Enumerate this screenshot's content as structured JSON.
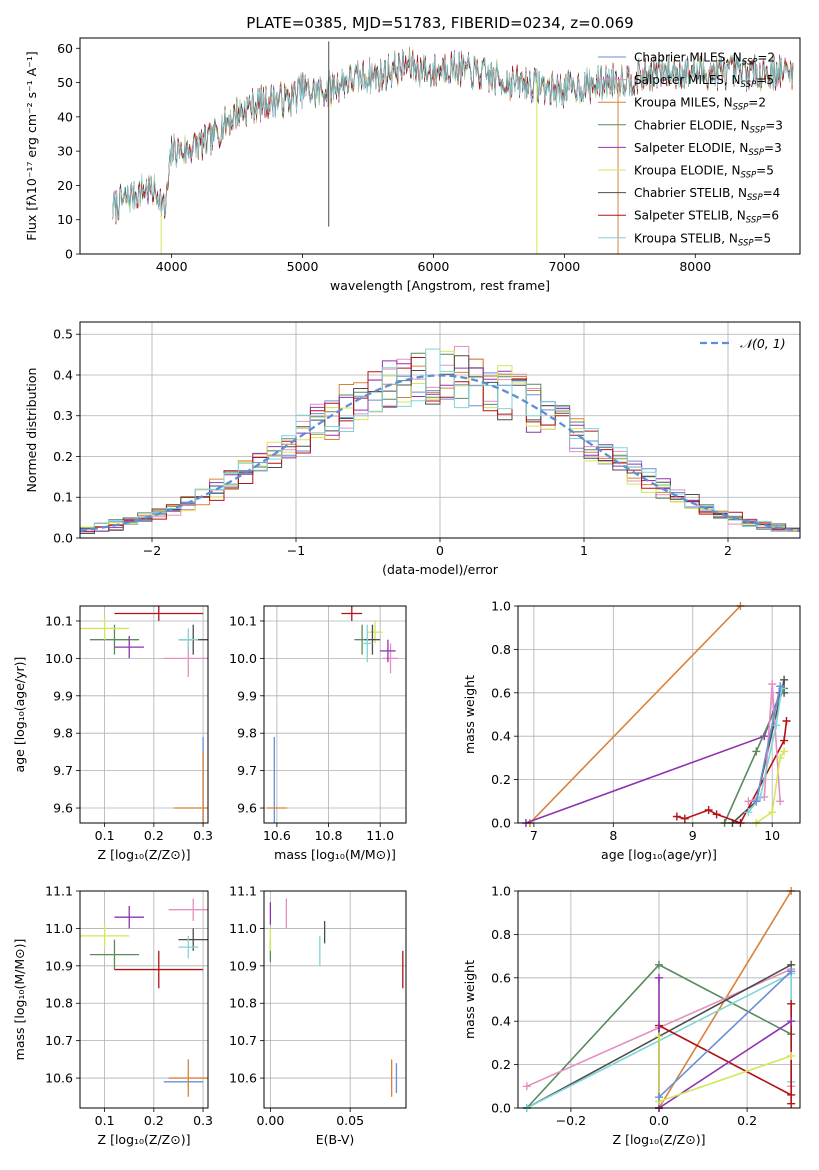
{
  "title": "PLATE=0385, MJD=51783, FIBERID=0234, z=0.069",
  "colors": {
    "chabrier_miles": "#6a8fd6",
    "salpeter_miles": "#e58fc0",
    "kroupa_miles": "#d9823a",
    "chabrier_elodie": "#5a8a5e",
    "salpeter_elodie": "#8e34b0",
    "kroupa_elodie": "#d4e65a",
    "chabrier_stelib": "#4d4d4d",
    "salpeter_stelib": "#b31217",
    "kroupa_stelib": "#7fd6d9",
    "normal_curve": "#5b8fd8",
    "grid": "#b0b0b0"
  },
  "chart_data": [
    {
      "id": "spectrum",
      "type": "line",
      "xlabel": "wavelength [Angstrom, rest frame]",
      "ylabel": "Flux [fλ10⁻¹⁷ erg cm⁻² s⁻¹ A⁻¹]",
      "xlim": [
        3300,
        8800
      ],
      "ylim": [
        0,
        63
      ],
      "xticks": [
        "4000",
        "5000",
        "6000",
        "7000",
        "8000"
      ],
      "yticks": [
        "0",
        "10",
        "20",
        "30",
        "40",
        "50",
        "60"
      ],
      "legend_position": "top-right",
      "grid": false,
      "continuum": {
        "x": [
          3550,
          3600,
          3700,
          3800,
          3900,
          3950,
          4000,
          4100,
          4200,
          4300,
          4400,
          4500,
          4600,
          4700,
          4800,
          4900,
          5000,
          5100,
          5200,
          5300,
          5400,
          5500,
          5600,
          5700,
          5800,
          5900,
          6000,
          6100,
          6200,
          6300,
          6400,
          6500,
          6600,
          6700,
          6800,
          6900,
          7000,
          7100,
          7200,
          7300,
          7400,
          7500,
          7600,
          7700,
          7800,
          7900,
          8000,
          8100,
          8200,
          8300,
          8400,
          8500,
          8600,
          8700
        ],
        "y": [
          13,
          15,
          17,
          19,
          18,
          12,
          30,
          30,
          32,
          33,
          38,
          41,
          43,
          44,
          45,
          45,
          48,
          47,
          48,
          50,
          51,
          52,
          52,
          54,
          55,
          54,
          53,
          55,
          54,
          53,
          52,
          51,
          50,
          50,
          49,
          48,
          48,
          49,
          49,
          50,
          51,
          51,
          52,
          53,
          53,
          53,
          53,
          53,
          53,
          53,
          53,
          53,
          53,
          53
        ]
      },
      "series": [
        {
          "name": "Chabrier MILES, N_SSP=2",
          "legend": "Chabrier MILES, N",
          "sub": "SSP",
          "suffix": "=2",
          "color_key": "chabrier_miles"
        },
        {
          "name": "Salpeter MILES, N_SSP=5",
          "legend": "Salpeter MILES, N",
          "sub": "SSP",
          "suffix": "=5",
          "color_key": "salpeter_miles"
        },
        {
          "name": "Kroupa MILES, N_SSP=2",
          "legend": "Kroupa MILES, N",
          "sub": "SSP",
          "suffix": "=2",
          "color_key": "kroupa_miles"
        },
        {
          "name": "Chabrier ELODIE, N_SSP=3",
          "legend": "Chabrier ELODIE, N",
          "sub": "SSP",
          "suffix": "=3",
          "color_key": "chabrier_elodie"
        },
        {
          "name": "Salpeter ELODIE, N_SSP=3",
          "legend": "Salpeter ELODIE, N",
          "sub": "SSP",
          "suffix": "=3",
          "color_key": "salpeter_elodie"
        },
        {
          "name": "Kroupa ELODIE, N_SSP=5",
          "legend": "Kroupa ELODIE, N",
          "sub": "SSP",
          "suffix": "=5",
          "color_key": "kroupa_elodie"
        },
        {
          "name": "Chabrier STELIB, N_SSP=4",
          "legend": "Chabrier STELIB, N",
          "sub": "SSP",
          "suffix": "=4",
          "color_key": "chabrier_stelib"
        },
        {
          "name": "Salpeter STELIB, N_SSP=6",
          "legend": "Salpeter STELIB, N",
          "sub": "SSP",
          "suffix": "=6",
          "color_key": "salpeter_stelib"
        },
        {
          "name": "Kroupa STELIB, N_SSP=5",
          "legend": "Kroupa STELIB, N",
          "sub": "SSP",
          "suffix": "=5",
          "color_key": "kroupa_stelib"
        }
      ],
      "features": [
        {
          "color_key": "chabrier_stelib",
          "x": 5200,
          "y": [
            8,
            62
          ]
        },
        {
          "color_key": "kroupa_elodie",
          "x": 3920,
          "y": [
            0,
            12
          ]
        },
        {
          "color_key": "kroupa_elodie",
          "x": 6790,
          "y": [
            0,
            50
          ]
        },
        {
          "color_key": "kroupa_miles",
          "x": 7410,
          "y": [
            0,
            50
          ]
        }
      ]
    },
    {
      "id": "residuals",
      "type": "bar",
      "xlabel": "(data-model)/error",
      "ylabel": "Normed distribution",
      "xlim": [
        -2.5,
        2.5
      ],
      "ylim": [
        0,
        0.53
      ],
      "xticks": [
        "−2",
        "−1",
        "0",
        "1",
        "2"
      ],
      "yticks": [
        "0.0",
        "0.1",
        "0.2",
        "0.3",
        "0.4",
        "0.5"
      ],
      "grid": true,
      "legend": "𝒩(0, 1)",
      "legend_position": "top-right",
      "bin_width": 0.1
    },
    {
      "id": "age_vs_Z",
      "type": "scatter",
      "xlabel": "Z [log₁₀(Z/Z⊙)]",
      "ylabel": "age  [log₁₀(age/yr)]",
      "xlim": [
        0.05,
        0.31
      ],
      "ylim": [
        9.56,
        10.14
      ],
      "xticks": [
        "0.1",
        "0.2",
        "0.3"
      ],
      "yticks": [
        "9.6",
        "9.7",
        "9.8",
        "9.9",
        "10.0",
        "10.1"
      ],
      "grid": true,
      "points": [
        {
          "color_key": "chabrier_miles",
          "x": 0.3,
          "xerr": 0.0,
          "y": 9.6,
          "yerr": 0.19
        },
        {
          "color_key": "salpeter_miles",
          "x": 0.27,
          "xerr": 0.05,
          "y": 10.0,
          "yerr": 0.05
        },
        {
          "color_key": "kroupa_miles",
          "x": 0.3,
          "xerr": 0.06,
          "y": 9.6,
          "yerr": 0.15
        },
        {
          "color_key": "chabrier_elodie",
          "x": 0.12,
          "xerr": 0.05,
          "y": 10.05,
          "yerr": 0.04
        },
        {
          "color_key": "salpeter_elodie",
          "x": 0.15,
          "xerr": 0.03,
          "y": 10.03,
          "yerr": 0.03
        },
        {
          "color_key": "kroupa_elodie",
          "x": 0.1,
          "xerr": 0.05,
          "y": 10.08,
          "yerr": 0.03
        },
        {
          "color_key": "chabrier_stelib",
          "x": 0.28,
          "xerr": 0.03,
          "y": 10.05,
          "yerr": 0.04
        },
        {
          "color_key": "salpeter_stelib",
          "x": 0.21,
          "xerr": 0.09,
          "y": 10.12,
          "yerr": 0.02
        },
        {
          "color_key": "kroupa_stelib",
          "x": 0.27,
          "xerr": 0.02,
          "y": 10.05,
          "yerr": 0.03
        }
      ]
    },
    {
      "id": "age_vs_mass",
      "type": "scatter",
      "xlabel": "mass [log₁₀(M/M⊙)]",
      "xlim": [
        10.55,
        11.1
      ],
      "ylim": [
        9.56,
        10.14
      ],
      "xticks": [
        "10.6",
        "10.8",
        "11.0"
      ],
      "yticks": [
        "9.6",
        "9.7",
        "9.8",
        "9.9",
        "10.0",
        "10.1"
      ],
      "grid": true,
      "points": [
        {
          "color_key": "chabrier_miles",
          "x": 10.59,
          "xerr": 0.0,
          "y": 9.6,
          "yerr": 0.19
        },
        {
          "color_key": "salpeter_miles",
          "x": 11.04,
          "xerr": 0.03,
          "y": 10.0,
          "yerr": 0.04
        },
        {
          "color_key": "kroupa_miles",
          "x": 10.6,
          "xerr": 0.04,
          "y": 9.6,
          "yerr": 0.0
        },
        {
          "color_key": "chabrier_elodie",
          "x": 10.93,
          "xerr": 0.03,
          "y": 10.05,
          "yerr": 0.04
        },
        {
          "color_key": "salpeter_elodie",
          "x": 11.03,
          "xerr": 0.03,
          "y": 10.02,
          "yerr": 0.03
        },
        {
          "color_key": "kroupa_elodie",
          "x": 10.98,
          "xerr": 0.03,
          "y": 10.07,
          "yerr": 0.03
        },
        {
          "color_key": "chabrier_stelib",
          "x": 10.97,
          "xerr": 0.03,
          "y": 10.05,
          "yerr": 0.04
        },
        {
          "color_key": "salpeter_stelib",
          "x": 10.89,
          "xerr": 0.04,
          "y": 10.12,
          "yerr": 0.02
        },
        {
          "color_key": "kroupa_stelib",
          "x": 10.95,
          "xerr": 0.02,
          "y": 10.04,
          "yerr": 0.05
        }
      ]
    },
    {
      "id": "weight_vs_age",
      "type": "line",
      "xlabel": "age  [log₁₀(age/yr)]",
      "ylabel": "mass weight",
      "xlim": [
        6.8,
        10.35
      ],
      "ylim": [
        0,
        1
      ],
      "xticks": [
        "7",
        "8",
        "9",
        "10"
      ],
      "yticks": [
        "0.0",
        "0.2",
        "0.4",
        "0.6",
        "0.8",
        "1.0"
      ],
      "grid": true,
      "series": [
        {
          "color_key": "kroupa_miles",
          "x": [
            6.95,
            9.6
          ],
          "y": [
            0.0,
            1.0
          ]
        },
        {
          "color_key": "salpeter_elodie",
          "x": [
            6.9,
            9.9,
            10.1
          ],
          "y": [
            0.0,
            0.4,
            0.6
          ]
        },
        {
          "color_key": "chabrier_stelib",
          "x": [
            9.5,
            9.8,
            10.15,
            10.15
          ],
          "y": [
            0.0,
            0.1,
            0.66,
            0.6
          ]
        },
        {
          "color_key": "chabrier_elodie",
          "x": [
            9.4,
            9.8,
            10.15
          ],
          "y": [
            0.0,
            0.33,
            0.62
          ]
        },
        {
          "color_key": "salpeter_stelib",
          "x": [
            8.8,
            8.9,
            9.2,
            9.3,
            9.6,
            10.15,
            10.18
          ],
          "y": [
            0.03,
            0.02,
            0.06,
            0.04,
            0.0,
            0.38,
            0.47
          ]
        },
        {
          "color_key": "salpeter_miles",
          "x": [
            9.7,
            9.9,
            10.0,
            10.1
          ],
          "y": [
            0.1,
            0.12,
            0.64,
            0.1
          ]
        },
        {
          "color_key": "kroupa_elodie",
          "x": [
            9.8,
            10.0,
            10.1,
            10.15
          ],
          "y": [
            0.0,
            0.05,
            0.3,
            0.33
          ]
        },
        {
          "color_key": "kroupa_stelib",
          "x": [
            9.7,
            9.85,
            10.05,
            10.12
          ],
          "y": [
            0.05,
            0.12,
            0.45,
            0.62
          ]
        },
        {
          "color_key": "chabrier_miles",
          "x": [
            9.8,
            10.1
          ],
          "y": [
            0.1,
            0.63
          ]
        }
      ]
    },
    {
      "id": "mass_vs_Z",
      "type": "scatter",
      "xlabel": "Z [log₁₀(Z/Z⊙)]",
      "ylabel": "mass [log₁₀(M/M⊙)]",
      "xlim": [
        0.05,
        0.31
      ],
      "ylim": [
        10.52,
        11.1
      ],
      "xticks": [
        "0.1",
        "0.2",
        "0.3"
      ],
      "yticks": [
        "10.6",
        "10.7",
        "10.8",
        "10.9",
        "11.0",
        "11.1"
      ],
      "grid": true,
      "points": [
        {
          "color_key": "chabrier_miles",
          "x": 0.26,
          "xerr": 0.04,
          "y": 10.59,
          "yerr": 0.0
        },
        {
          "color_key": "salpeter_miles",
          "x": 0.28,
          "xerr": 0.05,
          "y": 11.05,
          "yerr": 0.03
        },
        {
          "color_key": "kroupa_miles",
          "x": 0.27,
          "xerr": 0.04,
          "y": 10.6,
          "yerr": 0.05
        },
        {
          "color_key": "chabrier_elodie",
          "x": 0.12,
          "xerr": 0.05,
          "y": 10.93,
          "yerr": 0.04
        },
        {
          "color_key": "salpeter_elodie",
          "x": 0.15,
          "xerr": 0.03,
          "y": 11.03,
          "yerr": 0.03
        },
        {
          "color_key": "kroupa_elodie",
          "x": 0.1,
          "xerr": 0.05,
          "y": 10.98,
          "yerr": 0.03
        },
        {
          "color_key": "chabrier_stelib",
          "x": 0.28,
          "xerr": 0.03,
          "y": 10.97,
          "yerr": 0.03
        },
        {
          "color_key": "salpeter_stelib",
          "x": 0.21,
          "xerr": 0.09,
          "y": 10.89,
          "yerr": 0.05
        },
        {
          "color_key": "kroupa_stelib",
          "x": 0.27,
          "xerr": 0.02,
          "y": 10.95,
          "yerr": 0.03
        }
      ]
    },
    {
      "id": "mass_vs_ebv",
      "type": "scatter",
      "xlabel": "E(B-V)",
      "xlim": [
        -0.004,
        0.085
      ],
      "ylim": [
        10.52,
        11.1
      ],
      "xticks": [
        "0.00",
        "0.05"
      ],
      "yticks": [
        "10.6",
        "10.7",
        "10.8",
        "10.9",
        "11.0",
        "11.1"
      ],
      "grid": true,
      "points": [
        {
          "color_key": "chabrier_miles",
          "x": 0.079,
          "xerr": 0.0,
          "y": 10.6,
          "yerr": 0.04
        },
        {
          "color_key": "salpeter_miles",
          "x": 0.01,
          "xerr": 0.0,
          "y": 11.04,
          "yerr": 0.04
        },
        {
          "color_key": "kroupa_miles",
          "x": 0.076,
          "xerr": 0.0,
          "y": 10.6,
          "yerr": 0.05
        },
        {
          "color_key": "chabrier_elodie",
          "x": 0.0,
          "xerr": 0.0,
          "y": 10.94,
          "yerr": 0.03
        },
        {
          "color_key": "salpeter_elodie",
          "x": 0.0,
          "xerr": 0.0,
          "y": 11.04,
          "yerr": 0.03
        },
        {
          "color_key": "kroupa_elodie",
          "x": 0.0,
          "xerr": 0.0,
          "y": 10.97,
          "yerr": 0.03
        },
        {
          "color_key": "chabrier_stelib",
          "x": 0.034,
          "xerr": 0.0,
          "y": 10.99,
          "yerr": 0.03
        },
        {
          "color_key": "salpeter_stelib",
          "x": 0.083,
          "xerr": 0.0,
          "y": 10.89,
          "yerr": 0.05
        },
        {
          "color_key": "kroupa_stelib",
          "x": 0.031,
          "xerr": 0.0,
          "y": 10.94,
          "yerr": 0.04
        }
      ]
    },
    {
      "id": "weight_vs_Z",
      "type": "line",
      "xlabel": "Z [log₁₀(Z/Z⊙)]",
      "ylabel": "mass weight",
      "xlim": [
        -0.32,
        0.32
      ],
      "ylim": [
        0,
        1
      ],
      "xticks": [
        "−0.2",
        "0.0",
        "0.2"
      ],
      "yticks": [
        "0.0",
        "0.2",
        "0.4",
        "0.6",
        "0.8",
        "1.0"
      ],
      "grid": true,
      "series": [
        {
          "color_key": "kroupa_miles",
          "x": [
            0.0,
            0.3
          ],
          "y": [
            0.0,
            1.0
          ]
        },
        {
          "color_key": "chabrier_elodie",
          "x": [
            -0.3,
            0.0,
            0.3
          ],
          "y": [
            0.0,
            0.66,
            0.34
          ]
        },
        {
          "color_key": "salpeter_miles",
          "x": [
            -0.3,
            0.0,
            0.3,
            0.3
          ],
          "y": [
            0.1,
            0.37,
            0.64,
            0.1
          ]
        },
        {
          "color_key": "chabrier_stelib",
          "x": [
            -0.3,
            0.3
          ],
          "y": [
            0.0,
            0.66
          ]
        },
        {
          "color_key": "kroupa_stelib",
          "x": [
            -0.3,
            0.3,
            0.3
          ],
          "y": [
            0.0,
            0.62,
            0.12
          ]
        },
        {
          "color_key": "salpeter_stelib",
          "x": [
            0.0,
            0.0,
            0.3,
            0.3,
            0.3
          ],
          "y": [
            0.0,
            0.38,
            0.06,
            0.48,
            0.02
          ]
        },
        {
          "color_key": "salpeter_elodie",
          "x": [
            0.0,
            0.0,
            0.3
          ],
          "y": [
            0.6,
            0.0,
            0.4
          ]
        },
        {
          "color_key": "kroupa_elodie",
          "x": [
            0.0,
            0.0,
            0.3
          ],
          "y": [
            0.33,
            0.03,
            0.24
          ]
        },
        {
          "color_key": "chabrier_miles",
          "x": [
            0.0,
            0.3
          ],
          "y": [
            0.05,
            0.63
          ]
        }
      ]
    }
  ]
}
